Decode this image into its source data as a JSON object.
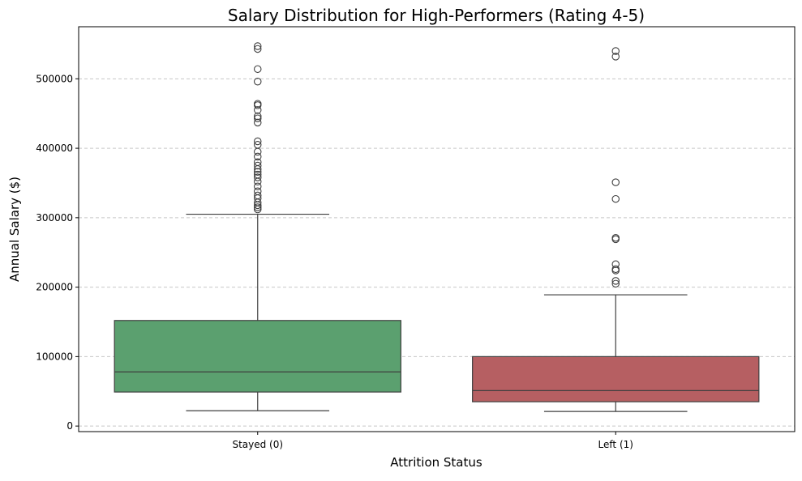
{
  "chart_data": {
    "type": "box",
    "title": "Salary Distribution for High-Performers (Rating 4-5)",
    "xlabel": "Attrition Status",
    "ylabel": "Annual Salary ($)",
    "categories": [
      "Stayed (0)",
      "Left (1)"
    ],
    "ylim": [
      -8000,
      575000
    ],
    "yticks": [
      0,
      100000,
      200000,
      300000,
      400000,
      500000
    ],
    "grid": "y-dashed",
    "series": [
      {
        "category": "Stayed (0)",
        "color": "#5ba06f",
        "whisker_low": 22000,
        "q1": 49000,
        "median": 78000,
        "q3": 152000,
        "whisker_high": 305000,
        "outliers": [
          312000,
          315000,
          318000,
          322000,
          328000,
          332000,
          338000,
          345000,
          352000,
          358000,
          362000,
          366000,
          370000,
          375000,
          380000,
          388000,
          395000,
          405000,
          410000,
          437000,
          443000,
          446000,
          455000,
          462000,
          464000,
          496000,
          514000,
          543000,
          547000
        ]
      },
      {
        "category": "Left (1)",
        "color": "#b65f62",
        "whisker_low": 21000,
        "q1": 35000,
        "median": 51000,
        "q3": 100000,
        "whisker_high": 189000,
        "outliers": [
          205000,
          209000,
          224000,
          226000,
          233000,
          269000,
          271000,
          327000,
          351000,
          532000,
          540000
        ]
      }
    ]
  }
}
